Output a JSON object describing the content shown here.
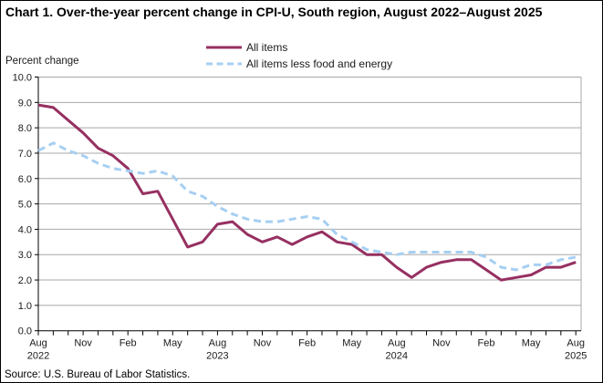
{
  "header": {
    "title": "Chart 1. Over-the-year percent change in CPI-U, South region, August 2022–August 2025"
  },
  "legend": {
    "items": [
      {
        "label": "All items",
        "style": "solid"
      },
      {
        "label": "All items less food and energy",
        "style": "dashed"
      }
    ]
  },
  "axis": {
    "y_unit_label": "Percent change"
  },
  "source": "Source: U.S. Bureau of Labor Statistics.",
  "colors": {
    "all_items": "#963061",
    "core": "#A6CFF2",
    "grid": "#A8A8A8",
    "axis": "#000000",
    "text": "#1a1a1a"
  },
  "chart_data": {
    "type": "line",
    "title": "Over-the-year percent change in CPI-U, South region, August 2022–August 2025",
    "ylabel": "Percent change",
    "ylim": [
      0,
      10
    ],
    "ytick_step": 1.0,
    "grid": true,
    "legend_position": "top-center",
    "x": [
      "Aug 2022",
      "Sep 2022",
      "Oct 2022",
      "Nov 2022",
      "Dec 2022",
      "Jan 2023",
      "Feb 2023",
      "Mar 2023",
      "Apr 2023",
      "May 2023",
      "Jun 2023",
      "Jul 2023",
      "Aug 2023",
      "Sep 2023",
      "Oct 2023",
      "Nov 2023",
      "Dec 2023",
      "Jan 2024",
      "Feb 2024",
      "Mar 2024",
      "Apr 2024",
      "May 2024",
      "Jun 2024",
      "Jul 2024",
      "Aug 2024",
      "Sep 2024",
      "Oct 2024",
      "Nov 2024",
      "Dec 2024",
      "Jan 2025",
      "Feb 2025",
      "Mar 2025",
      "Apr 2025",
      "May 2025",
      "Jun 2025",
      "Jul 2025",
      "Aug 2025"
    ],
    "series": [
      {
        "name": "All items",
        "style": "solid",
        "color": "#963061",
        "values": [
          8.9,
          8.8,
          8.3,
          7.8,
          7.2,
          6.9,
          6.4,
          5.4,
          5.5,
          4.4,
          3.3,
          3.5,
          4.2,
          4.3,
          3.8,
          3.5,
          3.7,
          3.4,
          3.7,
          3.9,
          3.5,
          3.4,
          3.0,
          3.0,
          2.5,
          2.1,
          2.5,
          2.7,
          2.8,
          2.8,
          2.4,
          2.0,
          2.1,
          2.2,
          2.5,
          2.5,
          2.7
        ]
      },
      {
        "name": "All items less food and energy",
        "style": "dashed",
        "color": "#A6CFF2",
        "values": [
          7.1,
          7.4,
          7.1,
          6.9,
          6.6,
          6.4,
          6.3,
          6.2,
          6.3,
          6.1,
          5.5,
          5.3,
          4.9,
          4.6,
          4.4,
          4.3,
          4.3,
          4.4,
          4.5,
          4.4,
          3.8,
          3.5,
          3.2,
          3.1,
          3.0,
          3.1,
          3.1,
          3.1,
          3.1,
          3.1,
          2.9,
          2.5,
          2.4,
          2.6,
          2.6,
          2.8,
          2.9
        ]
      }
    ],
    "xtick_labels": [
      {
        "index": 0,
        "text": "Aug",
        "year": "2022"
      },
      {
        "index": 3,
        "text": "Nov"
      },
      {
        "index": 6,
        "text": "Feb"
      },
      {
        "index": 9,
        "text": "May"
      },
      {
        "index": 12,
        "text": "Aug",
        "year": "2023"
      },
      {
        "index": 15,
        "text": "Nov"
      },
      {
        "index": 18,
        "text": "Feb"
      },
      {
        "index": 21,
        "text": "May"
      },
      {
        "index": 24,
        "text": "Aug",
        "year": "2024"
      },
      {
        "index": 27,
        "text": "Nov"
      },
      {
        "index": 30,
        "text": "Feb"
      },
      {
        "index": 33,
        "text": "May"
      },
      {
        "index": 36,
        "text": "Aug",
        "year": "2025"
      }
    ]
  }
}
